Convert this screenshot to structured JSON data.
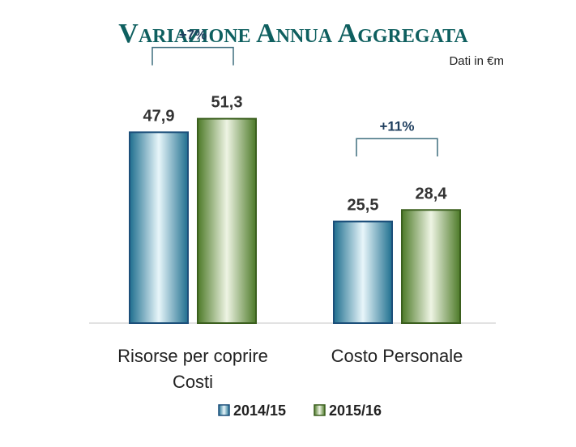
{
  "chart_data": {
    "type": "bar",
    "title": "Variazione Annua Aggregata",
    "subtitle": "Dati in €m",
    "categories": [
      [
        "Risorse per coprire",
        "Costi"
      ],
      [
        "Costo Personale"
      ]
    ],
    "series": [
      {
        "name": "2014/15",
        "values": [
          47.9,
          25.5
        ],
        "labels": [
          "47,9",
          "25,5"
        ]
      },
      {
        "name": "2015/16",
        "values": [
          51.3,
          28.4
        ],
        "labels": [
          "51,3",
          "28,4"
        ]
      }
    ],
    "annotations": [
      "+7%",
      "+11%"
    ],
    "ylim": [
      0,
      75
    ],
    "grid": false,
    "legend": "bottom",
    "colors": {
      "title": "#0e5f5f",
      "series_1_dark": "#1f6f8f",
      "series_1_light": "#e8f6fa",
      "series_1_edge": "#1c4f7a",
      "series_2_dark": "#4d7a28",
      "series_2_light": "#eef4e4",
      "series_2_edge": "#3b5f1e",
      "bracket": "#3e6e7e",
      "text": "#333333",
      "annotation": "#1f3f5f"
    }
  }
}
